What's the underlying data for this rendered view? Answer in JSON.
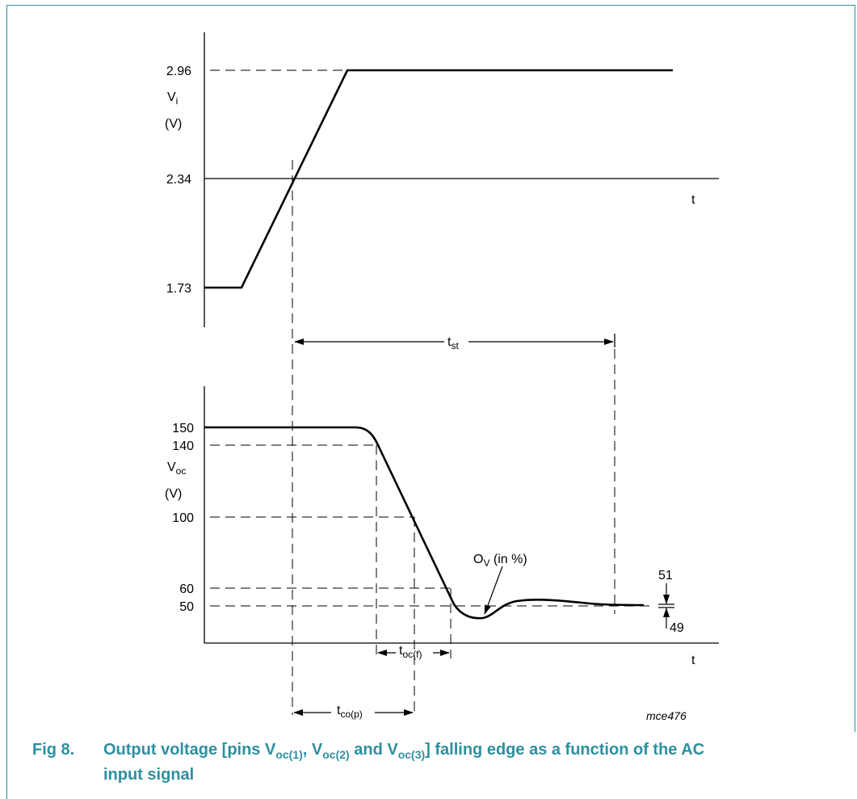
{
  "top_panel": {
    "y_tick_296": "2.96",
    "y_tick_234": "2.34",
    "y_tick_173": "1.73",
    "ylabel_main": "V",
    "ylabel_sub": "i",
    "ylabel_unit": "(V)",
    "xlabel": "t"
  },
  "settling": {
    "label_main": "t",
    "label_sub": "st"
  },
  "bottom_panel": {
    "y_tick_150": "150",
    "y_tick_140": "140",
    "y_tick_100": "100",
    "y_tick_60": "60",
    "y_tick_50": "50",
    "ylabel_main": "V",
    "ylabel_sub": "oc",
    "ylabel_unit": "(V)",
    "xlabel": "t",
    "overshoot_main": "O",
    "overshoot_sub": "V",
    "overshoot_suffix": " (in %)",
    "band_upper": "51",
    "band_lower": "49",
    "toc_main": "t",
    "toc_sub": "oc(f)",
    "tco_main": "t",
    "tco_sub": "co(p)",
    "figure_code": "mce476"
  },
  "caption": {
    "number": "Fig 8.",
    "text_1": "Output voltage [pins V",
    "sub_1": "oc(1)",
    "text_2": ", V",
    "sub_2": "oc(2)",
    "text_3": " and V",
    "sub_3": "oc(3)",
    "text_4": "] falling edge as a function of the AC",
    "text_5": "input signal"
  },
  "colors": {
    "caption": "#2e8fa0",
    "frame": "#2e8fa0",
    "lines": "#000000"
  }
}
